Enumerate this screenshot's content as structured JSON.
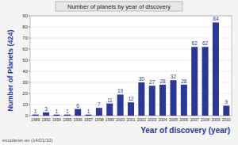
{
  "chart_data": {
    "type": "bar",
    "title": "Number of planets by year of discovery",
    "x_label": "Year of discovery (year)",
    "y_label": "Number of Planets (424)",
    "annotations": [
      "exoplanet.eu (14/01/10)"
    ],
    "categories": [
      "1989",
      "1992",
      "1994",
      "1995",
      "1996",
      "1997",
      "1998",
      "1999",
      "2000",
      "2001",
      "2002",
      "2003",
      "2004",
      "2005",
      "2006",
      "2007",
      "2008",
      "2009",
      "2010"
    ],
    "values": [
      1,
      3,
      1,
      1,
      6,
      1,
      7,
      11,
      19,
      12,
      30,
      27,
      28,
      32,
      28,
      62,
      62,
      84,
      9
    ],
    "color": "#2b3896",
    "ylim": [
      0,
      90
    ],
    "yticks": [
      0,
      10,
      20,
      30,
      40,
      50,
      60,
      70,
      80,
      90
    ],
    "grid": true,
    "data_labels": true
  }
}
